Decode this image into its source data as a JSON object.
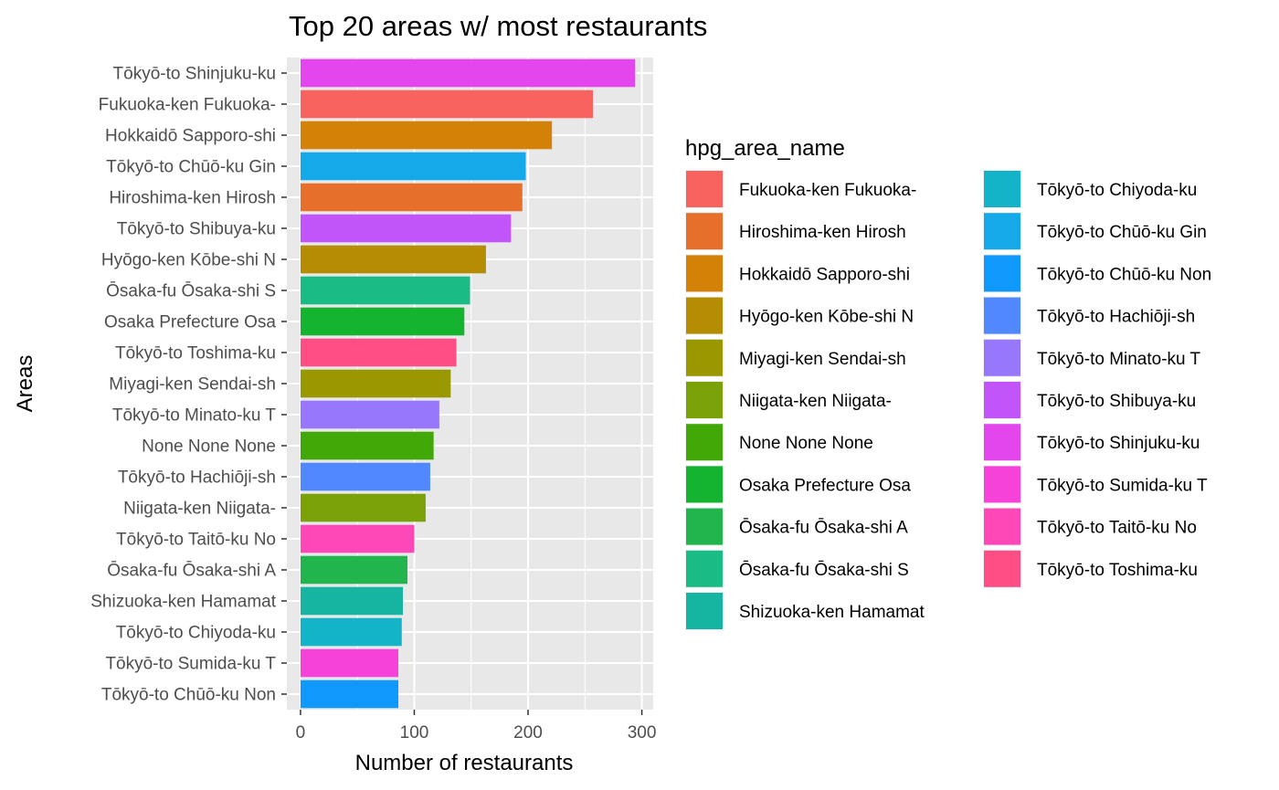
{
  "chart_data": {
    "type": "bar",
    "orientation": "horizontal",
    "title": "Top 20 areas w/ most restaurants",
    "xlabel": "Number of restaurants",
    "ylabel": "Areas",
    "xlim": [
      -12,
      310
    ],
    "xticks": [
      0,
      100,
      200,
      300
    ],
    "grid": true,
    "legend": {
      "title": "hpg_area_name",
      "placement": "right",
      "columns": 2
    },
    "categories": [
      "Tōkyō-to Shinjuku-ku",
      "Fukuoka-ken Fukuoka-",
      "Hokkaidō Sapporo-shi",
      "Tōkyō-to Chūō-ku Gin",
      "Hiroshima-ken Hirosh",
      "Tōkyō-to Shibuya-ku",
      "Hyōgo-ken Kōbe-shi N",
      "Ōsaka-fu Ōsaka-shi S",
      "Osaka Prefecture Osa",
      "Tōkyō-to Toshima-ku",
      "Miyagi-ken Sendai-sh",
      "Tōkyō-to Minato-ku T",
      "None None None",
      "Tōkyō-to Hachiōji-sh",
      "Niigata-ken Niigata-",
      "Tōkyō-to Taitō-ku No",
      "Ōsaka-fu Ōsaka-shi A",
      "Shizuoka-ken Hamamat",
      "Tōkyō-to Chiyoda-ku",
      "Tōkyō-to Sumida-ku T",
      "Tōkyō-to Chūō-ku Non"
    ],
    "values": [
      294,
      257,
      221,
      198,
      195,
      185,
      163,
      149,
      144,
      137,
      132,
      122,
      117,
      114,
      110,
      100,
      94,
      90,
      89,
      86,
      86
    ],
    "colors": [
      "#e346ec",
      "#f8635f",
      "#d48108",
      "#16a9e9",
      "#e76f2c",
      "#c255f9",
      "#b58d05",
      "#1abc85",
      "#14b430",
      "#ff4e86",
      "#9a9801",
      "#9778fd",
      "#42a807",
      "#5187ff",
      "#7aa107",
      "#fe48b7",
      "#22b54e",
      "#16b5a2",
      "#13b4c8",
      "#f742da",
      "#1099fd"
    ],
    "legend_entries": [
      {
        "label": "Fukuoka-ken Fukuoka-",
        "color": "#f8635f"
      },
      {
        "label": "Hiroshima-ken Hirosh",
        "color": "#e76f2c"
      },
      {
        "label": "Hokkaidō Sapporo-shi",
        "color": "#d48108"
      },
      {
        "label": "Hyōgo-ken Kōbe-shi N",
        "color": "#b58d05"
      },
      {
        "label": "Miyagi-ken Sendai-sh",
        "color": "#9a9801"
      },
      {
        "label": "Niigata-ken Niigata-",
        "color": "#7aa107"
      },
      {
        "label": "None None None",
        "color": "#42a807"
      },
      {
        "label": "Osaka Prefecture Osa",
        "color": "#14b430"
      },
      {
        "label": "Ōsaka-fu Ōsaka-shi A",
        "color": "#22b54e"
      },
      {
        "label": "Ōsaka-fu Ōsaka-shi S",
        "color": "#1abc85"
      },
      {
        "label": "Shizuoka-ken Hamamat",
        "color": "#16b5a2"
      },
      {
        "label": "Tōkyō-to Chiyoda-ku",
        "color": "#13b4c8"
      },
      {
        "label": "Tōkyō-to Chūō-ku Gin",
        "color": "#16a9e9"
      },
      {
        "label": "Tōkyō-to Chūō-ku Non",
        "color": "#1099fd"
      },
      {
        "label": "Tōkyō-to Hachiōji-sh",
        "color": "#5187ff"
      },
      {
        "label": "Tōkyō-to Minato-ku T",
        "color": "#9778fd"
      },
      {
        "label": "Tōkyō-to Shibuya-ku",
        "color": "#c255f9"
      },
      {
        "label": "Tōkyō-to Shinjuku-ku",
        "color": "#e346ec"
      },
      {
        "label": "Tōkyō-to Sumida-ku T",
        "color": "#f742da"
      },
      {
        "label": "Tōkyō-to Taitō-ku No",
        "color": "#fe48b7"
      },
      {
        "label": "Tōkyō-to Toshima-ku",
        "color": "#ff4e86"
      }
    ],
    "panel_background": "#e8e8e8",
    "gridline_color": "#ffffff"
  }
}
